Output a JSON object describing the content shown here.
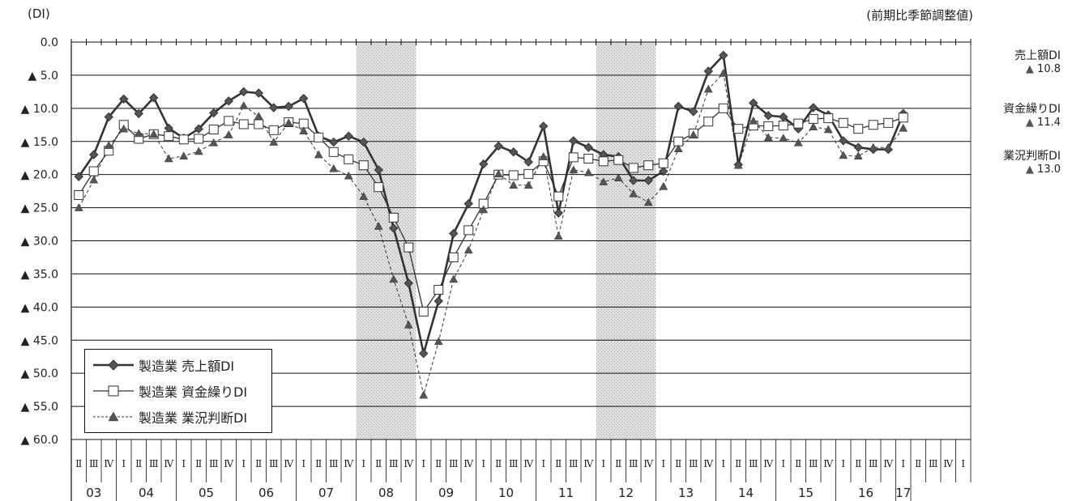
{
  "header": {
    "ylabel": "(DI)",
    "note": "(前期比季節調整値)"
  },
  "annotations": [
    {
      "label": "売上額DI",
      "value": "10.8"
    },
    {
      "label": "資金繰りDI",
      "value": "11.4"
    },
    {
      "label": "業況判断DI",
      "value": "13.0"
    }
  ],
  "legend": [
    {
      "label": "製造業 売上額DI"
    },
    {
      "label": "製造業 資金繰りDI"
    },
    {
      "label": "製造業 業況判断DI"
    }
  ],
  "colors": {
    "line": "#333333",
    "shade": "#d8d8d8",
    "grid": "#000000",
    "triangle": "#555555"
  },
  "chart_data": {
    "type": "line",
    "ylabel": "(DI)",
    "ylim": [
      0,
      60
    ],
    "y_inverted": true,
    "y_ticks": [
      "0.0",
      "▲ 5.0",
      "▲ 10.0",
      "▲ 15.0",
      "▲ 20.0",
      "▲ 25.0",
      "▲ 30.0",
      "▲ 35.0",
      "▲ 40.0",
      "▲ 45.0",
      "▲ 50.0",
      "▲ 55.0",
      "▲ 60.0"
    ],
    "quarter_labels": [
      "Ⅱ",
      "Ⅲ",
      "Ⅳ",
      "Ⅰ",
      "Ⅱ",
      "Ⅲ",
      "Ⅳ",
      "Ⅰ",
      "Ⅱ",
      "Ⅲ",
      "Ⅳ",
      "Ⅰ",
      "Ⅱ",
      "Ⅲ",
      "Ⅳ",
      "Ⅰ",
      "Ⅱ",
      "Ⅲ",
      "Ⅳ",
      "Ⅰ",
      "Ⅱ",
      "Ⅲ",
      "Ⅳ",
      "Ⅰ",
      "Ⅱ",
      "Ⅲ",
      "Ⅳ",
      "Ⅰ",
      "Ⅱ",
      "Ⅲ",
      "Ⅳ",
      "Ⅰ",
      "Ⅱ",
      "Ⅲ",
      "Ⅳ",
      "Ⅰ",
      "Ⅱ",
      "Ⅲ",
      "Ⅳ",
      "Ⅰ",
      "Ⅱ",
      "Ⅲ",
      "Ⅳ",
      "Ⅰ",
      "Ⅱ",
      "Ⅲ",
      "Ⅳ",
      "Ⅰ",
      "Ⅱ",
      "Ⅲ",
      "Ⅳ",
      "Ⅰ",
      "Ⅱ",
      "Ⅲ",
      "Ⅳ",
      "Ⅰ",
      "Ⅱ",
      "Ⅲ",
      "Ⅳ",
      "Ⅰ"
    ],
    "years": [
      {
        "label": "03",
        "start": 0,
        "end": 2
      },
      {
        "label": "04",
        "start": 3,
        "end": 6
      },
      {
        "label": "05",
        "start": 7,
        "end": 10
      },
      {
        "label": "06",
        "start": 11,
        "end": 14
      },
      {
        "label": "07",
        "start": 15,
        "end": 18
      },
      {
        "label": "08",
        "start": 19,
        "end": 22
      },
      {
        "label": "09",
        "start": 23,
        "end": 26
      },
      {
        "label": "10",
        "start": 27,
        "end": 30
      },
      {
        "label": "11",
        "start": 31,
        "end": 34
      },
      {
        "label": "12",
        "start": 35,
        "end": 38
      },
      {
        "label": "13",
        "start": 39,
        "end": 42
      },
      {
        "label": "14",
        "start": 43,
        "end": 46
      },
      {
        "label": "15",
        "start": 47,
        "end": 50
      },
      {
        "label": "16",
        "start": 51,
        "end": 54
      },
      {
        "label": "17",
        "start": 55,
        "end": 55
      }
    ],
    "shaded_ranges": [
      [
        19,
        22
      ],
      [
        35,
        38
      ]
    ],
    "grid": "horizontal",
    "legend_position": "bottom-left",
    "series": [
      {
        "name": "製造業 売上額DI",
        "style": "solid-diamond",
        "values": [
          20.3,
          17.0,
          11.3,
          8.6,
          10.8,
          8.4,
          13.0,
          14.5,
          13.1,
          10.7,
          8.9,
          7.5,
          7.7,
          9.9,
          9.7,
          8.5,
          14.2,
          15.1,
          14.2,
          15.1,
          19.3,
          28.1,
          36.4,
          47.0,
          39.1,
          28.9,
          24.4,
          18.4,
          15.7,
          16.6,
          18.1,
          12.7,
          25.8,
          14.9,
          15.9,
          17.0,
          17.3,
          20.9,
          20.9,
          19.5,
          9.7,
          10.5,
          4.4,
          2.0,
          18.5,
          9.2,
          11.1,
          11.3,
          13.1,
          9.9,
          11.0,
          14.9,
          15.9,
          16.2,
          16.2,
          10.8
        ]
      },
      {
        "name": "製造業 資金繰りDI",
        "style": "solid-square",
        "values": [
          23.1,
          19.5,
          16.4,
          12.5,
          14.6,
          13.9,
          14.2,
          14.7,
          14.6,
          13.2,
          11.9,
          12.4,
          12.4,
          13.3,
          12.1,
          12.3,
          14.4,
          16.6,
          17.7,
          18.6,
          21.9,
          26.5,
          31.0,
          40.7,
          37.4,
          32.5,
          28.4,
          24.4,
          20.0,
          20.1,
          19.9,
          18.0,
          23.3,
          17.4,
          17.6,
          18.0,
          17.8,
          19.0,
          18.6,
          18.3,
          15.0,
          13.8,
          12.0,
          10.0,
          13.1,
          12.6,
          12.7,
          12.6,
          12.3,
          11.6,
          11.5,
          12.2,
          13.1,
          12.5,
          12.2,
          11.4
        ]
      },
      {
        "name": "製造業 業況判断DI",
        "style": "dashed-triangle",
        "values": [
          25.0,
          20.8,
          15.6,
          13.1,
          13.8,
          13.9,
          17.6,
          17.2,
          16.5,
          15.2,
          14.0,
          9.6,
          11.2,
          15.1,
          12.2,
          13.4,
          17.0,
          19.1,
          20.2,
          23.3,
          27.8,
          35.8,
          42.7,
          53.3,
          45.2,
          35.8,
          31.4,
          25.3,
          19.9,
          21.6,
          21.6,
          17.3,
          29.3,
          19.3,
          19.7,
          21.1,
          20.5,
          22.9,
          24.2,
          21.8,
          16.1,
          14.0,
          7.1,
          4.7,
          18.6,
          11.9,
          14.4,
          14.5,
          15.2,
          12.8,
          13.2,
          17.1,
          17.2,
          15.9,
          15.9,
          13.0
        ]
      }
    ]
  }
}
